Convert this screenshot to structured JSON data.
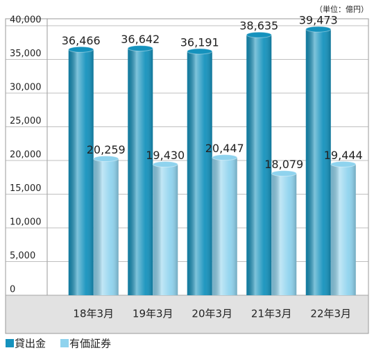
{
  "chart_data": {
    "type": "bar",
    "unit": "（単位：億円）",
    "categories": [
      "18年3月",
      "19年3月",
      "20年3月",
      "21年3月",
      "22年3月"
    ],
    "series": [
      {
        "name": "貸出金",
        "color": "#1592bd",
        "values": [
          36466,
          36642,
          36191,
          38635,
          39473
        ],
        "value_labels": [
          "36,466",
          "36,642",
          "36,191",
          "38,635",
          "39,473"
        ]
      },
      {
        "name": "有価証券",
        "color": "#8fd3ee",
        "values": [
          20259,
          19430,
          20447,
          18079,
          19444
        ],
        "value_labels": [
          "20,259",
          "19,430",
          "20,447",
          "18,079",
          "19,444"
        ]
      }
    ],
    "ylim": [
      0,
      40000
    ],
    "yticks": [
      0,
      {
        "value": 5000,
        "label": "5,000"
      },
      {
        "value": 10000,
        "label": "10,000"
      },
      {
        "value": 15000,
        "label": "15,000"
      },
      {
        "value": 20000,
        "label": "20,000"
      },
      {
        "value": 25000,
        "label": "25,000"
      },
      {
        "value": 30000,
        "label": "30,000"
      },
      {
        "value": 35000,
        "label": "35,000"
      },
      {
        "value": 40000,
        "label": "40,000"
      }
    ],
    "grid": true
  }
}
